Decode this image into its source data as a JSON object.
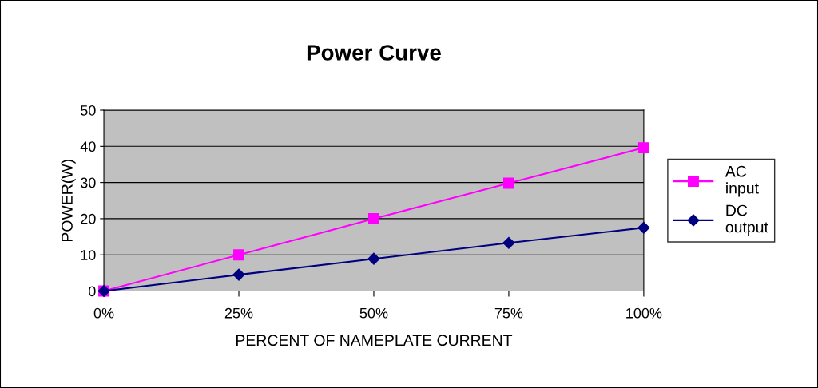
{
  "chart_data": {
    "type": "line",
    "title": "Power Curve",
    "xlabel": "PERCENT OF NAMEPLATE CURRENT",
    "ylabel": "POWER(W)",
    "categories": [
      "0%",
      "25%",
      "50%",
      "75%",
      "100%"
    ],
    "series": [
      {
        "name": "AC input",
        "color": "#ff00ff",
        "marker": "square",
        "values": [
          0,
          10,
          20,
          29.8,
          39.6
        ]
      },
      {
        "name": "DC output",
        "color": "#000080",
        "marker": "diamond",
        "values": [
          0,
          4.5,
          8.9,
          13.3,
          17.5
        ]
      }
    ],
    "ylim": [
      0,
      50
    ],
    "yticks": [
      0,
      10,
      20,
      30,
      40,
      50
    ],
    "grid": "y",
    "legend": "right",
    "line_style": "solid"
  }
}
